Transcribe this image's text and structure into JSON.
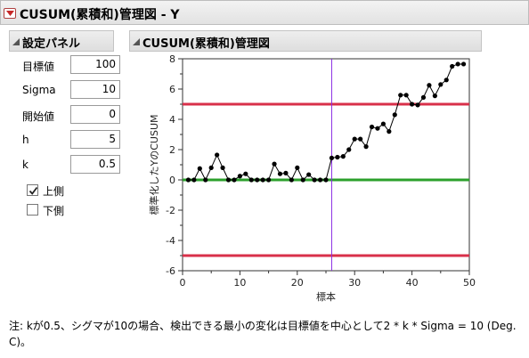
{
  "window": {
    "title": "CUSUM(累積和)管理図 - Y"
  },
  "settings_panel": {
    "title": "設定パネル",
    "fields": [
      {
        "label": "目標値",
        "value": "100"
      },
      {
        "label": "Sigma",
        "value": "10"
      },
      {
        "label": "開始値",
        "value": "0"
      },
      {
        "label": "h",
        "value": "5"
      },
      {
        "label": "k",
        "value": "0.5"
      }
    ],
    "checkboxes": [
      {
        "label": "上側",
        "checked": true
      },
      {
        "label": "下側",
        "checked": false
      }
    ]
  },
  "chart_panel": {
    "title": "CUSUM(累積和)管理図"
  },
  "chart_data": {
    "type": "line",
    "xlabel": "標本",
    "ylabel": "標準化したYのCUSUM",
    "xlim": [
      0,
      50
    ],
    "ylim": [
      -6,
      8
    ],
    "x_ticks": [
      "0",
      "10",
      "20",
      "30",
      "40",
      "50"
    ],
    "y_ticks": [
      "-6",
      "-4",
      "-2",
      "0",
      "2",
      "4",
      "6",
      "8"
    ],
    "x": [
      1,
      2,
      3,
      4,
      5,
      6,
      7,
      8,
      9,
      10,
      11,
      12,
      13,
      14,
      15,
      16,
      17,
      18,
      19,
      20,
      21,
      22,
      23,
      24,
      25,
      26,
      27,
      28,
      29,
      30,
      31,
      32,
      33,
      34,
      35,
      36,
      37,
      38,
      39,
      40,
      41,
      42,
      43,
      44,
      45,
      46,
      47,
      48,
      49
    ],
    "values": [
      0,
      0,
      0.75,
      0,
      0.8,
      1.65,
      0.8,
      0,
      0,
      0.25,
      0.4,
      0,
      0,
      0,
      0,
      1.05,
      0.4,
      0.45,
      0,
      0.8,
      0,
      0.35,
      0,
      0,
      0,
      1.45,
      1.5,
      1.55,
      2.0,
      2.7,
      2.7,
      2.2,
      3.5,
      3.4,
      3.7,
      3.2,
      4.3,
      5.6,
      5.6,
      5.0,
      4.95,
      5.45,
      6.25,
      5.55,
      6.3,
      6.6,
      7.5,
      7.65,
      7.65
    ],
    "upper_limit": 5,
    "lower_limit": -5,
    "center": 0,
    "change_point": 26,
    "colors": {
      "limit": "#d8304a",
      "center": "#2ca02c",
      "change": "#8a2be2",
      "series": "#000000"
    }
  },
  "note": "注: kが0.5、シグマが10の場合、検出できる最小の変化は目標値を中心として2 * k * Sigma = 10 (Deg. C)。"
}
